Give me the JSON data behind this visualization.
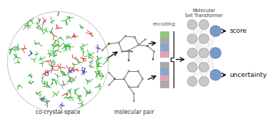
{
  "fig_width": 3.78,
  "fig_height": 1.77,
  "dpi": 100,
  "background": "#ffffff",
  "label_cocrystal": "co-crystal space",
  "label_molpair": "molecular pair",
  "label_encoding": "encoding",
  "label_mst": "Molecular\nSet Transformer",
  "label_score": "score",
  "label_uncertainty": "uncertainty",
  "colors_mol": [
    "#33aa33",
    "#dd3333",
    "#3333aa",
    "#888888"
  ],
  "weights_mol": [
    0.65,
    0.18,
    0.12,
    0.05
  ],
  "enc_top_colors": [
    "#8dc87c",
    "#aaaaaa",
    "#7fa7d8",
    "#e8a0b4"
  ],
  "enc_bot_colors": [
    "#aaaaaa",
    "#7fa7d8",
    "#e8a0b4",
    "#aaaaaa"
  ],
  "font_size_label": 5.5,
  "font_size_enc": 5.0,
  "font_size_mst": 4.8,
  "font_size_out": 6.5
}
